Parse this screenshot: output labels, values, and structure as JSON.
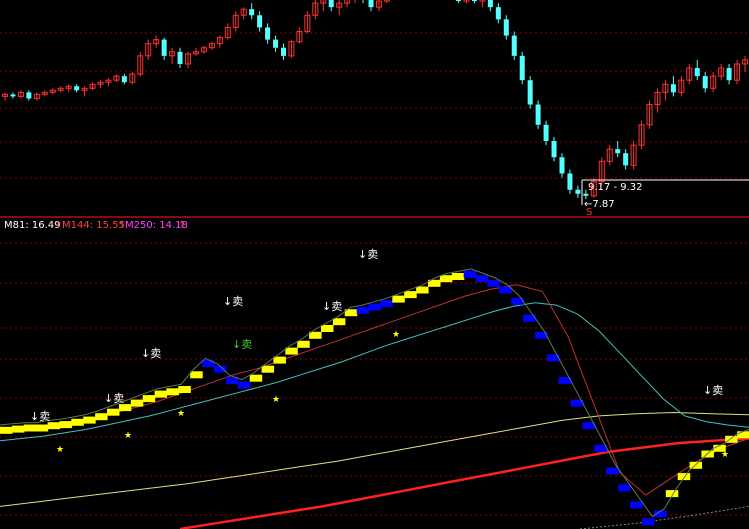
{
  "indicator_legend": {
    "m81": {
      "label": "M81: 16.49",
      "arrow": "↑",
      "color": "#ffffff"
    },
    "m144": {
      "label": "M144: 15.55",
      "arrow": "↑",
      "color": "#ff4040"
    },
    "m250": {
      "label": "M250: 14.18",
      "arrow": "↑",
      "color": "#ff40ff"
    }
  },
  "price_annotation": {
    "range": "9.17 - 9.32",
    "low": "←7.87",
    "marker": "S"
  },
  "signals": [
    {
      "text": "↓卖",
      "color": "#ffffff"
    },
    {
      "text": "↓卖",
      "color": "#ffffff"
    },
    {
      "text": "↓卖",
      "color": "#ffffff"
    },
    {
      "text": "↓卖",
      "color": "#ffffff"
    },
    {
      "text": "↓卖",
      "color": "#33cc33"
    },
    {
      "text": "↓卖",
      "color": "#ffffff"
    },
    {
      "text": "↓卖",
      "color": "#ffffff"
    },
    {
      "text": "↓卖",
      "color": "#ffffff"
    }
  ],
  "colors": {
    "background": "#000000",
    "candle_up": "#ff3030",
    "candle_down": "#54ffff",
    "grid": "#8b0000",
    "step_up": "#ffff00",
    "step_down": "#0000ff",
    "ma_cyan": "#40c0c0",
    "ma_yellow": "#e0e080",
    "ma_red_thin": "#c03030",
    "ma_red_thick": "#ff2020",
    "star": "#ffff00"
  },
  "chart_data": [
    {
      "type": "candlestick",
      "title": "",
      "candles": [
        [
          10.4,
          10.5,
          10.3,
          10.45
        ],
        [
          10.45,
          10.5,
          10.35,
          10.4
        ],
        [
          10.4,
          10.55,
          10.35,
          10.5
        ],
        [
          10.5,
          10.55,
          10.3,
          10.35
        ],
        [
          10.35,
          10.5,
          10.3,
          10.45
        ],
        [
          10.45,
          10.55,
          10.4,
          10.5
        ],
        [
          10.5,
          10.6,
          10.45,
          10.55
        ],
        [
          10.55,
          10.65,
          10.5,
          10.6
        ],
        [
          10.6,
          10.7,
          10.5,
          10.65
        ],
        [
          10.65,
          10.7,
          10.5,
          10.55
        ],
        [
          10.55,
          10.65,
          10.4,
          10.6
        ],
        [
          10.6,
          10.75,
          10.55,
          10.7
        ],
        [
          10.7,
          10.8,
          10.6,
          10.75
        ],
        [
          10.75,
          10.85,
          10.65,
          10.8
        ],
        [
          10.8,
          10.95,
          10.75,
          10.9
        ],
        [
          10.9,
          10.95,
          10.7,
          10.75
        ],
        [
          10.75,
          11.0,
          10.7,
          10.95
        ],
        [
          10.95,
          11.5,
          10.9,
          11.4
        ],
        [
          11.4,
          11.8,
          11.3,
          11.7
        ],
        [
          11.7,
          11.9,
          11.6,
          11.8
        ],
        [
          11.8,
          11.85,
          11.3,
          11.4
        ],
        [
          11.4,
          11.6,
          11.2,
          11.5
        ],
        [
          11.5,
          11.6,
          11.1,
          11.2
        ],
        [
          11.2,
          11.5,
          11.1,
          11.45
        ],
        [
          11.45,
          11.6,
          11.4,
          11.5
        ],
        [
          11.5,
          11.65,
          11.45,
          11.6
        ],
        [
          11.6,
          11.75,
          11.55,
          11.7
        ],
        [
          11.7,
          11.9,
          11.6,
          11.85
        ],
        [
          11.85,
          12.2,
          11.8,
          12.1
        ],
        [
          12.1,
          12.5,
          12.0,
          12.4
        ],
        [
          12.4,
          12.6,
          12.3,
          12.55
        ],
        [
          12.55,
          12.7,
          12.3,
          12.4
        ],
        [
          12.4,
          12.5,
          12.0,
          12.1
        ],
        [
          12.1,
          12.2,
          11.7,
          11.8
        ],
        [
          11.8,
          11.9,
          11.5,
          11.6
        ],
        [
          11.6,
          11.7,
          11.3,
          11.4
        ],
        [
          11.4,
          11.8,
          11.35,
          11.75
        ],
        [
          11.75,
          12.1,
          11.7,
          12.0
        ],
        [
          12.0,
          12.5,
          11.95,
          12.4
        ],
        [
          12.4,
          12.8,
          12.3,
          12.7
        ],
        [
          12.7,
          12.9,
          12.5,
          12.8
        ],
        [
          12.8,
          12.9,
          12.5,
          12.6
        ],
        [
          12.6,
          12.8,
          12.4,
          12.7
        ],
        [
          12.7,
          12.9,
          12.6,
          12.85
        ],
        [
          12.85,
          12.95,
          12.7,
          12.9
        ],
        [
          12.9,
          12.95,
          12.7,
          12.8
        ],
        [
          12.8,
          12.9,
          12.5,
          12.6
        ],
        [
          12.6,
          12.8,
          12.5,
          12.75
        ],
        [
          12.75,
          12.9,
          12.7,
          12.85
        ],
        [
          12.85,
          12.95,
          12.8,
          12.9
        ],
        [
          12.9,
          12.95,
          12.8,
          12.85
        ],
        [
          12.85,
          12.95,
          12.8,
          12.9
        ],
        [
          12.9,
          12.95,
          12.8,
          12.85
        ],
        [
          12.85,
          12.95,
          12.8,
          12.9
        ],
        [
          12.9,
          12.95,
          12.85,
          12.9
        ],
        [
          12.9,
          12.95,
          12.8,
          12.85
        ],
        [
          12.85,
          12.95,
          12.8,
          12.9
        ],
        [
          12.9,
          12.95,
          12.7,
          12.75
        ],
        [
          12.75,
          12.9,
          12.7,
          12.85
        ],
        [
          12.85,
          12.9,
          12.7,
          12.75
        ],
        [
          12.75,
          12.9,
          12.6,
          12.85
        ],
        [
          12.85,
          12.95,
          12.5,
          12.6
        ],
        [
          12.6,
          12.7,
          12.2,
          12.3
        ],
        [
          12.3,
          12.4,
          11.8,
          11.9
        ],
        [
          11.9,
          12.0,
          11.3,
          11.4
        ],
        [
          11.4,
          11.5,
          10.7,
          10.8
        ],
        [
          10.8,
          10.9,
          10.1,
          10.2
        ],
        [
          10.2,
          10.3,
          9.6,
          9.7
        ],
        [
          9.7,
          9.8,
          9.2,
          9.3
        ],
        [
          9.3,
          9.4,
          8.8,
          8.9
        ],
        [
          8.9,
          9.0,
          8.4,
          8.5
        ],
        [
          8.5,
          8.6,
          8.0,
          8.1
        ],
        [
          8.1,
          8.2,
          7.9,
          8.0
        ],
        [
          8.0,
          8.1,
          7.87,
          7.95
        ],
        [
          7.95,
          8.4,
          7.9,
          8.3
        ],
        [
          8.3,
          8.9,
          8.2,
          8.8
        ],
        [
          8.8,
          9.2,
          8.7,
          9.1
        ],
        [
          9.1,
          9.3,
          8.9,
          9.0
        ],
        [
          9.0,
          9.1,
          8.6,
          8.7
        ],
        [
          8.7,
          9.3,
          8.6,
          9.2
        ],
        [
          9.2,
          9.8,
          9.1,
          9.7
        ],
        [
          9.7,
          10.3,
          9.6,
          10.2
        ],
        [
          10.2,
          10.6,
          10.0,
          10.5
        ],
        [
          10.5,
          10.8,
          10.3,
          10.7
        ],
        [
          10.7,
          10.9,
          10.4,
          10.5
        ],
        [
          10.5,
          10.9,
          10.4,
          10.8
        ],
        [
          10.8,
          11.2,
          10.7,
          11.1
        ],
        [
          11.1,
          11.3,
          10.8,
          10.9
        ],
        [
          10.9,
          11.0,
          10.5,
          10.6
        ],
        [
          10.6,
          11.0,
          10.5,
          10.9
        ],
        [
          10.9,
          11.2,
          10.8,
          11.1
        ],
        [
          11.1,
          11.2,
          10.7,
          10.8
        ],
        [
          10.8,
          11.3,
          10.7,
          11.2
        ],
        [
          11.2,
          11.4,
          11.0,
          11.3
        ]
      ],
      "range_annotation": "9.17 - 9.32",
      "low_annotation": "7.87"
    },
    {
      "type": "line",
      "title": "",
      "legend": [
        "M81: 16.49",
        "M144: 15.55",
        "M250: 14.18"
      ],
      "step_series": {
        "values": [
          0.86,
          0.87,
          0.88,
          0.88,
          0.9,
          0.91,
          0.93,
          0.95,
          0.98,
          1.02,
          1.06,
          1.1,
          1.14,
          1.18,
          1.2,
          1.22,
          1.35,
          1.45,
          1.4,
          1.3,
          1.26,
          1.32,
          1.4,
          1.48,
          1.56,
          1.62,
          1.7,
          1.76,
          1.82,
          1.9,
          1.92,
          1.95,
          1.98,
          2.02,
          2.06,
          2.1,
          2.16,
          2.2,
          2.22,
          2.24,
          2.2,
          2.16,
          2.1,
          2.0,
          1.85,
          1.7,
          1.5,
          1.3,
          1.1,
          0.9,
          0.7,
          0.5,
          0.35,
          0.2,
          0.05,
          0.12,
          0.3,
          0.45,
          0.55,
          0.65,
          0.7,
          0.78,
          0.82
        ],
        "down_segments": [
          [
            17,
            20
          ],
          [
            30,
            32
          ],
          [
            39,
            55
          ]
        ]
      },
      "ma_cyan": [
        0.78,
        0.8,
        0.82,
        0.85,
        0.88,
        0.92,
        0.96,
        1.0,
        1.05,
        1.1,
        1.15,
        1.2,
        1.25,
        1.3,
        1.36,
        1.42,
        1.48,
        1.55,
        1.62,
        1.68,
        1.74,
        1.8,
        1.86,
        1.92,
        1.97,
        2.0,
        1.98,
        1.9,
        1.75,
        1.55,
        1.35,
        1.15,
        1.0,
        0.95,
        0.92,
        0.9
      ],
      "ma_yellow": [
        0.2,
        0.24,
        0.28,
        0.32,
        0.36,
        0.4,
        0.45,
        0.5,
        0.55,
        0.6,
        0.66,
        0.72,
        0.78,
        0.84,
        0.9,
        0.96,
        1.0,
        1.02,
        1.03,
        1.02,
        1.01
      ],
      "ma_red_thin": [
        0.88,
        0.9,
        0.92,
        0.95,
        1.0,
        1.06,
        1.12,
        1.2,
        1.28,
        1.36,
        1.42,
        1.5,
        1.58,
        1.66,
        1.74,
        1.82,
        1.9,
        1.98,
        2.06,
        2.12,
        2.16,
        2.1,
        1.7,
        1.1,
        0.5,
        0.3,
        0.45,
        0.6,
        0.72,
        0.8
      ],
      "ma_red_thick": [
        0.0,
        0.05,
        0.1,
        0.15,
        0.2,
        0.26,
        0.32,
        0.38,
        0.44,
        0.5,
        0.56,
        0.62,
        0.68,
        0.72,
        0.76,
        0.78,
        0.8
      ],
      "ma_gray": [
        0.0,
        0.05,
        0.12,
        0.2
      ],
      "ylim": [
        0,
        2.6
      ]
    }
  ]
}
